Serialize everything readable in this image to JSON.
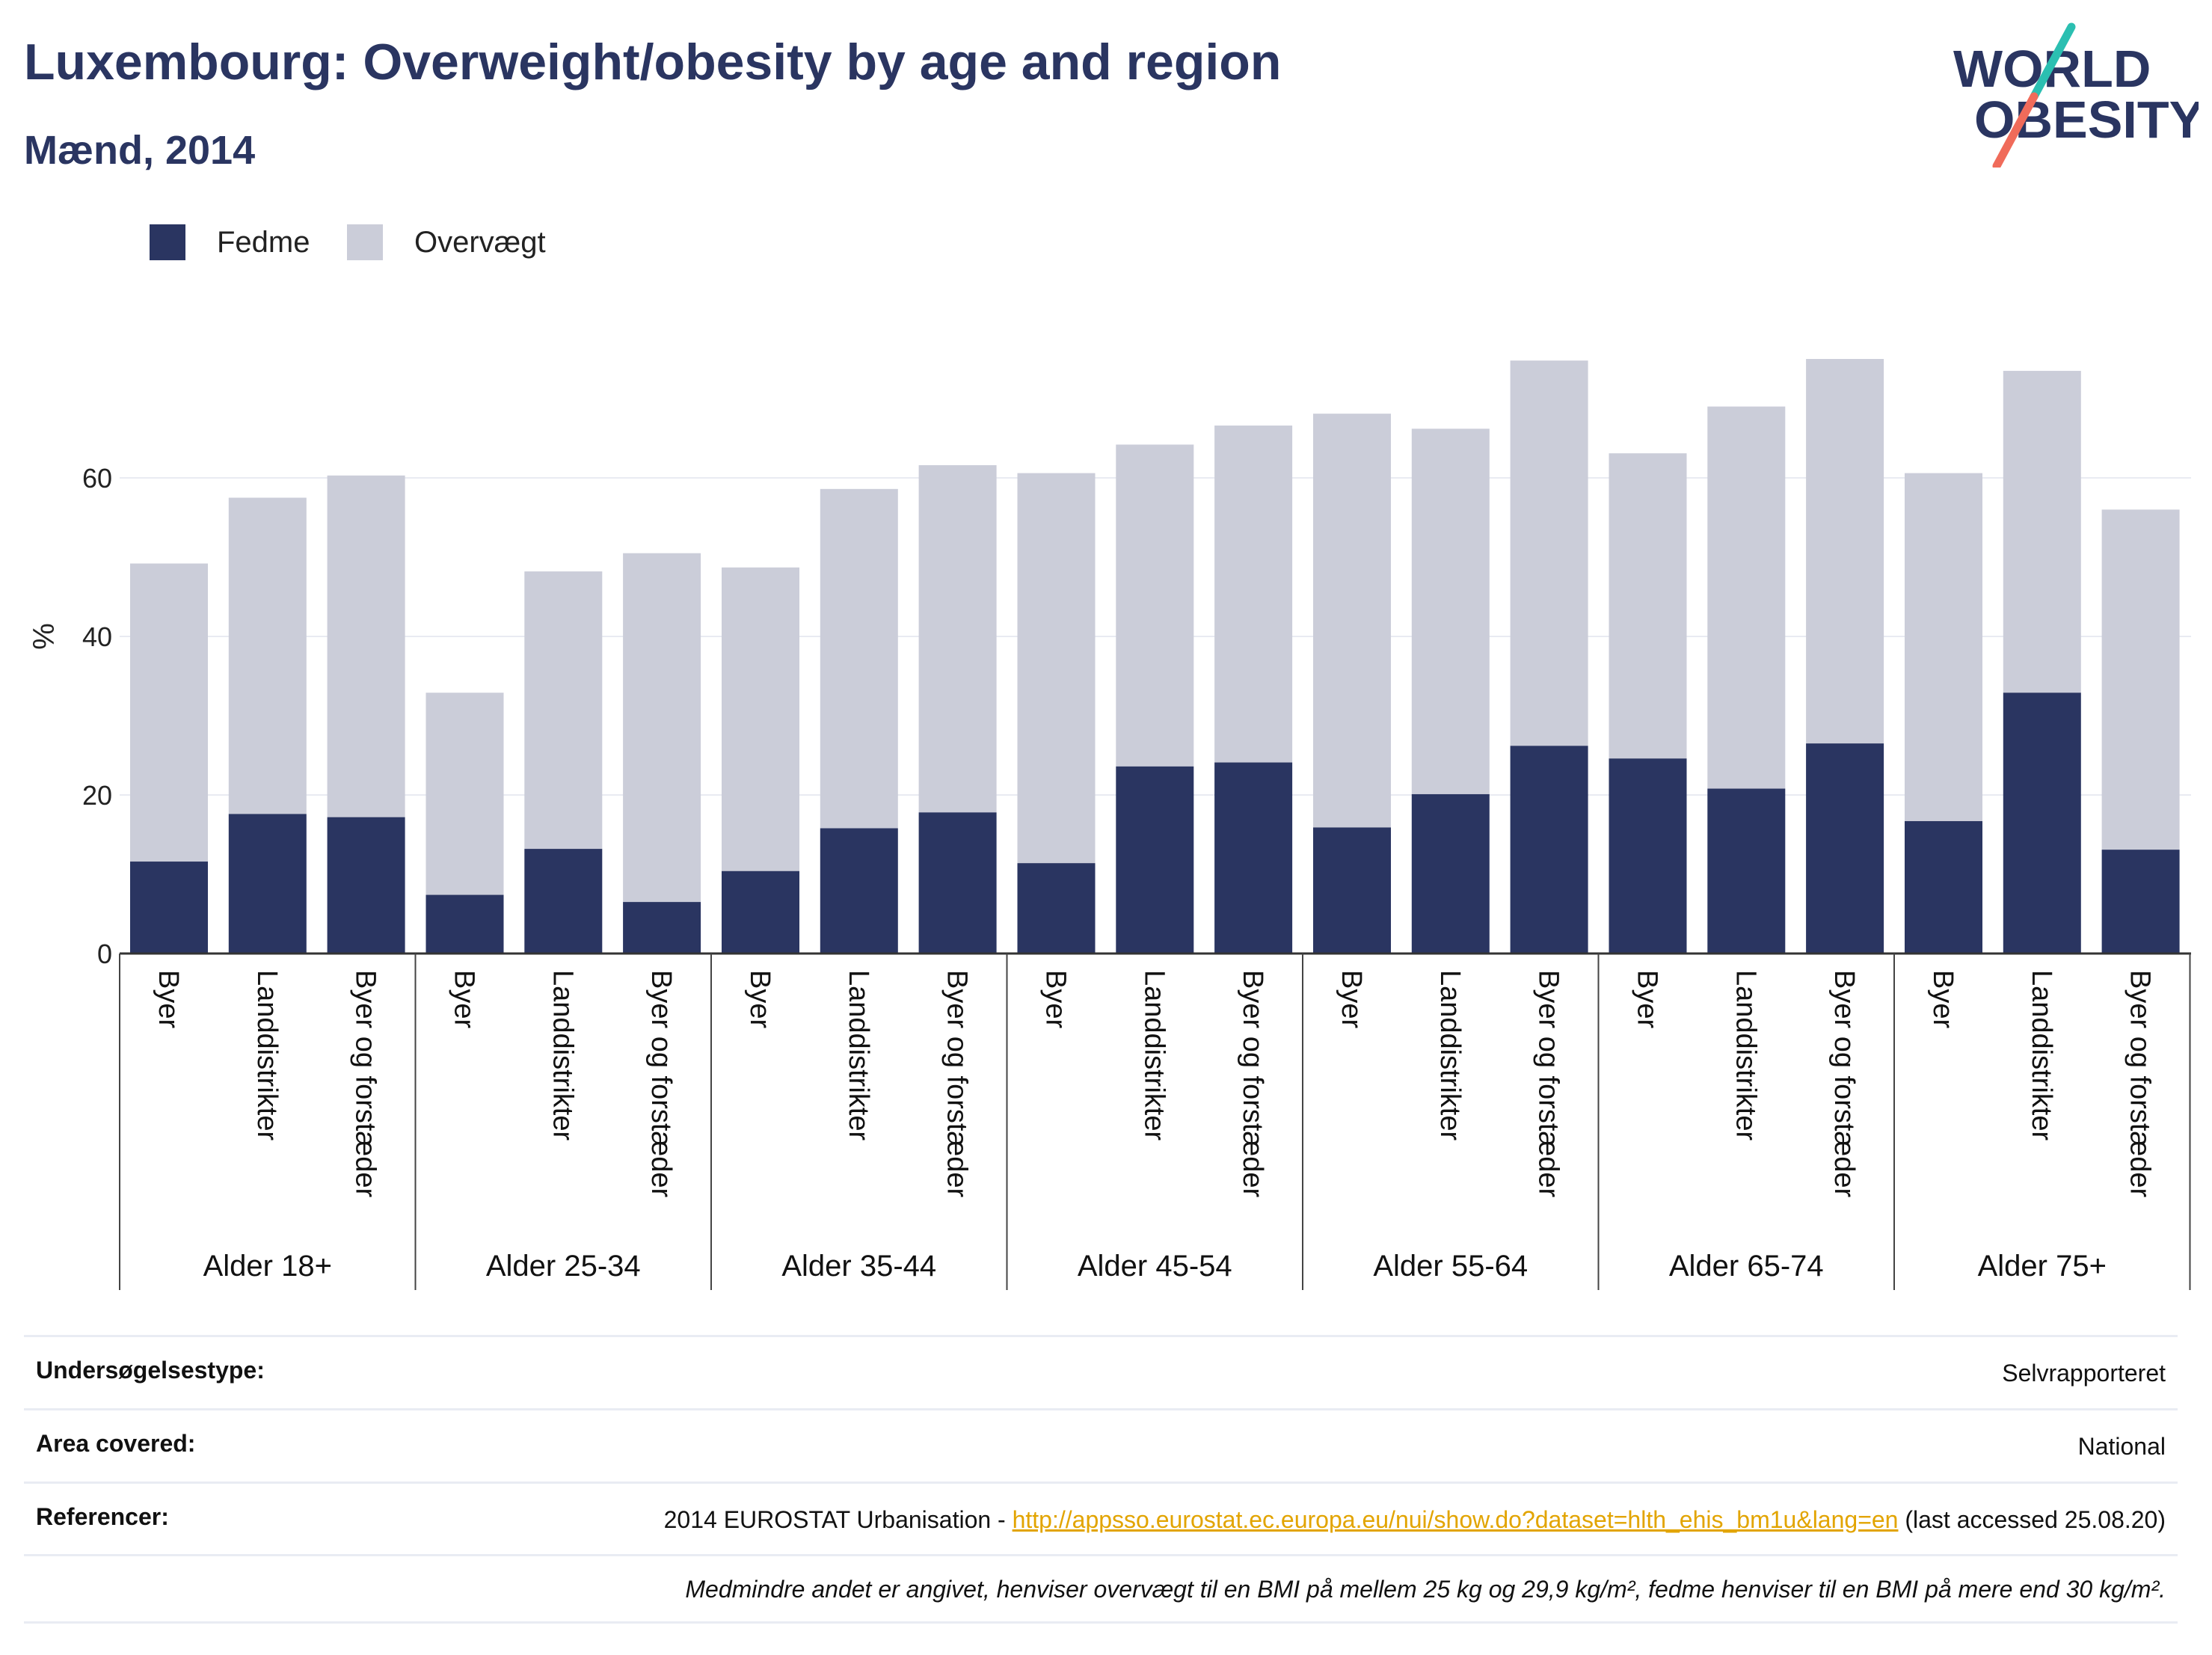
{
  "title": "Luxembourg: Overweight/obesity by age and region",
  "subtitle": "Mænd, 2014",
  "logo": {
    "line1": "WORLD",
    "line2": "OBESITY"
  },
  "colors": {
    "obesity": "#2a3561",
    "overweight": "#cbcdd9",
    "brand_teal": "#2bbfb1",
    "brand_coral": "#f06b5a",
    "link": "#e2a400"
  },
  "legend": [
    {
      "label": "Fedme",
      "color": "#2a3561"
    },
    {
      "label": "Overvægt",
      "color": "#cbcdd9"
    }
  ],
  "chart_data": {
    "type": "bar",
    "stacked": true,
    "ylabel": "%",
    "ylim": [
      0,
      80
    ],
    "yticks": [
      0,
      20,
      40,
      60
    ],
    "grid": true,
    "legend_position": "top-left",
    "groups": [
      {
        "label": "Alder 18+",
        "categories": [
          "Byer",
          "Landdistrikter",
          "Byer og forstæder"
        ],
        "fedme": [
          11.6,
          17.6,
          17.2
        ],
        "total": [
          49.2,
          57.5,
          60.3
        ]
      },
      {
        "label": "Alder 25-34",
        "categories": [
          "Byer",
          "Landdistrikter",
          "Byer og forstæder"
        ],
        "fedme": [
          7.4,
          13.2,
          6.5
        ],
        "total": [
          32.9,
          48.2,
          50.5
        ]
      },
      {
        "label": "Alder 35-44",
        "categories": [
          "Byer",
          "Landdistrikter",
          "Byer og forstæder"
        ],
        "fedme": [
          10.4,
          15.8,
          17.8
        ],
        "total": [
          48.7,
          58.6,
          61.6
        ]
      },
      {
        "label": "Alder 45-54",
        "categories": [
          "Byer",
          "Landdistrikter",
          "Byer og forstæder"
        ],
        "fedme": [
          11.4,
          23.6,
          24.1
        ],
        "total": [
          60.6,
          64.2,
          66.6
        ]
      },
      {
        "label": "Alder 55-64",
        "categories": [
          "Byer",
          "Landdistrikter",
          "Byer og forstæder"
        ],
        "fedme": [
          15.9,
          20.1,
          26.2
        ],
        "total": [
          68.1,
          66.2,
          74.8
        ]
      },
      {
        "label": "Alder 65-74",
        "categories": [
          "Byer",
          "Landdistrikter",
          "Byer og forstæder"
        ],
        "fedme": [
          24.6,
          20.8,
          26.5
        ],
        "total": [
          63.1,
          69.0,
          75.0
        ]
      },
      {
        "label": "Alder 75+",
        "categories": [
          "Byer",
          "Landdistrikter",
          "Byer og forstæder"
        ],
        "fedme": [
          16.7,
          32.9,
          13.1
        ],
        "total": [
          60.6,
          73.5,
          56.0
        ]
      }
    ]
  },
  "info": {
    "survey_type_label": "Undersøgelsestype:",
    "survey_type_value": "Selvrapporteret",
    "area_label": "Area covered:",
    "area_value": "National",
    "references_label": "Referencer:",
    "references_prefix": "2014 EUROSTAT Urbanisation - ",
    "references_link": "http://appsso.eurostat.ec.europa.eu/nui/show.do?dataset=hlth_ehis_bm1u&lang=en",
    "references_suffix": " (last accessed 25.08.20)",
    "note": "Medmindre andet er angivet, henviser overvægt til en BMI på mellem 25 kg og 29,9 kg/m², fedme henviser til en BMI på mere end 30 kg/m²."
  }
}
